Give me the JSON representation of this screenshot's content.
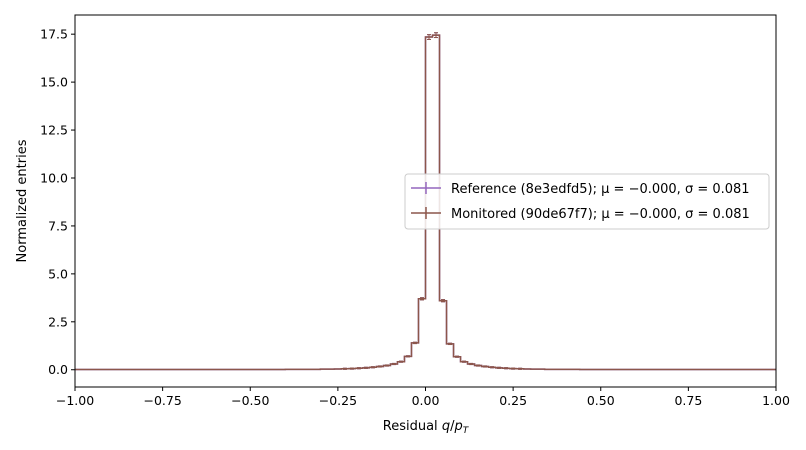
{
  "chart_data": {
    "type": "histogram",
    "title": "",
    "xlabel_prefix": "Residual ",
    "xlabel_var": "q",
    "xlabel_slash": "/",
    "xlabel_p": "p",
    "xlabel_sub": "T",
    "ylabel": "Normalized entries",
    "xlim": [
      -1.0,
      1.0
    ],
    "ylim": [
      -0.9,
      18.5
    ],
    "xticks": [
      -1.0,
      -0.75,
      -0.5,
      -0.25,
      0.0,
      0.25,
      0.5,
      0.75,
      1.0
    ],
    "xtick_labels": [
      "−1.00",
      "−0.75",
      "−0.50",
      "−0.25",
      "0.00",
      "0.25",
      "0.50",
      "0.75",
      "1.00"
    ],
    "yticks": [
      0.0,
      2.5,
      5.0,
      7.5,
      10.0,
      12.5,
      15.0,
      17.5
    ],
    "ytick_labels": [
      "0.0",
      "2.5",
      "5.0",
      "7.5",
      "10.0",
      "12.5",
      "15.0",
      "17.5"
    ],
    "legend_position": "center-right",
    "bin_edges_range": [
      -1.0,
      1.0
    ],
    "bin_count": 100,
    "series": [
      {
        "name": "Reference (8e3edfd5); μ = −0.000, σ = 0.081",
        "color": "#9467bd",
        "values": [
          0.01,
          0.01,
          0.01,
          0.01,
          0.01,
          0.01,
          0.01,
          0.01,
          0.01,
          0.01,
          0.01,
          0.01,
          0.01,
          0.01,
          0.01,
          0.01,
          0.01,
          0.01,
          0.01,
          0.01,
          0.01,
          0.01,
          0.01,
          0.01,
          0.01,
          0.01,
          0.01,
          0.01,
          0.01,
          0.01,
          0.02,
          0.02,
          0.02,
          0.02,
          0.02,
          0.03,
          0.03,
          0.04,
          0.05,
          0.06,
          0.08,
          0.1,
          0.13,
          0.17,
          0.22,
          0.3,
          0.42,
          0.7,
          1.4,
          3.7,
          17.35,
          17.45,
          3.6,
          1.35,
          0.68,
          0.42,
          0.3,
          0.22,
          0.17,
          0.13,
          0.1,
          0.08,
          0.06,
          0.05,
          0.04,
          0.03,
          0.03,
          0.02,
          0.02,
          0.02,
          0.02,
          0.02,
          0.01,
          0.01,
          0.01,
          0.01,
          0.01,
          0.01,
          0.01,
          0.01,
          0.01,
          0.01,
          0.01,
          0.01,
          0.01,
          0.01,
          0.01,
          0.01,
          0.01,
          0.01,
          0.01,
          0.01,
          0.01,
          0.01,
          0.01,
          0.01,
          0.01,
          0.01,
          0.01,
          0.01
        ]
      },
      {
        "name": "Monitored (90de67f7); μ = −0.000, σ = 0.081",
        "color": "#8c564b",
        "values": [
          0.01,
          0.01,
          0.01,
          0.01,
          0.01,
          0.01,
          0.01,
          0.01,
          0.01,
          0.01,
          0.01,
          0.01,
          0.01,
          0.01,
          0.01,
          0.01,
          0.01,
          0.01,
          0.01,
          0.01,
          0.01,
          0.01,
          0.01,
          0.01,
          0.01,
          0.01,
          0.01,
          0.01,
          0.01,
          0.01,
          0.02,
          0.02,
          0.02,
          0.02,
          0.02,
          0.03,
          0.03,
          0.04,
          0.05,
          0.06,
          0.08,
          0.1,
          0.13,
          0.17,
          0.22,
          0.3,
          0.42,
          0.7,
          1.4,
          3.7,
          17.35,
          17.45,
          3.6,
          1.35,
          0.68,
          0.42,
          0.3,
          0.22,
          0.17,
          0.13,
          0.1,
          0.08,
          0.06,
          0.05,
          0.04,
          0.03,
          0.03,
          0.02,
          0.02,
          0.02,
          0.02,
          0.02,
          0.01,
          0.01,
          0.01,
          0.01,
          0.01,
          0.01,
          0.01,
          0.01,
          0.01,
          0.01,
          0.01,
          0.01,
          0.01,
          0.01,
          0.01,
          0.01,
          0.01,
          0.01,
          0.01,
          0.01,
          0.01,
          0.01,
          0.01,
          0.01,
          0.01,
          0.01,
          0.01,
          0.01
        ]
      }
    ],
    "error_bar_bins": [
      49,
      50,
      51
    ]
  }
}
